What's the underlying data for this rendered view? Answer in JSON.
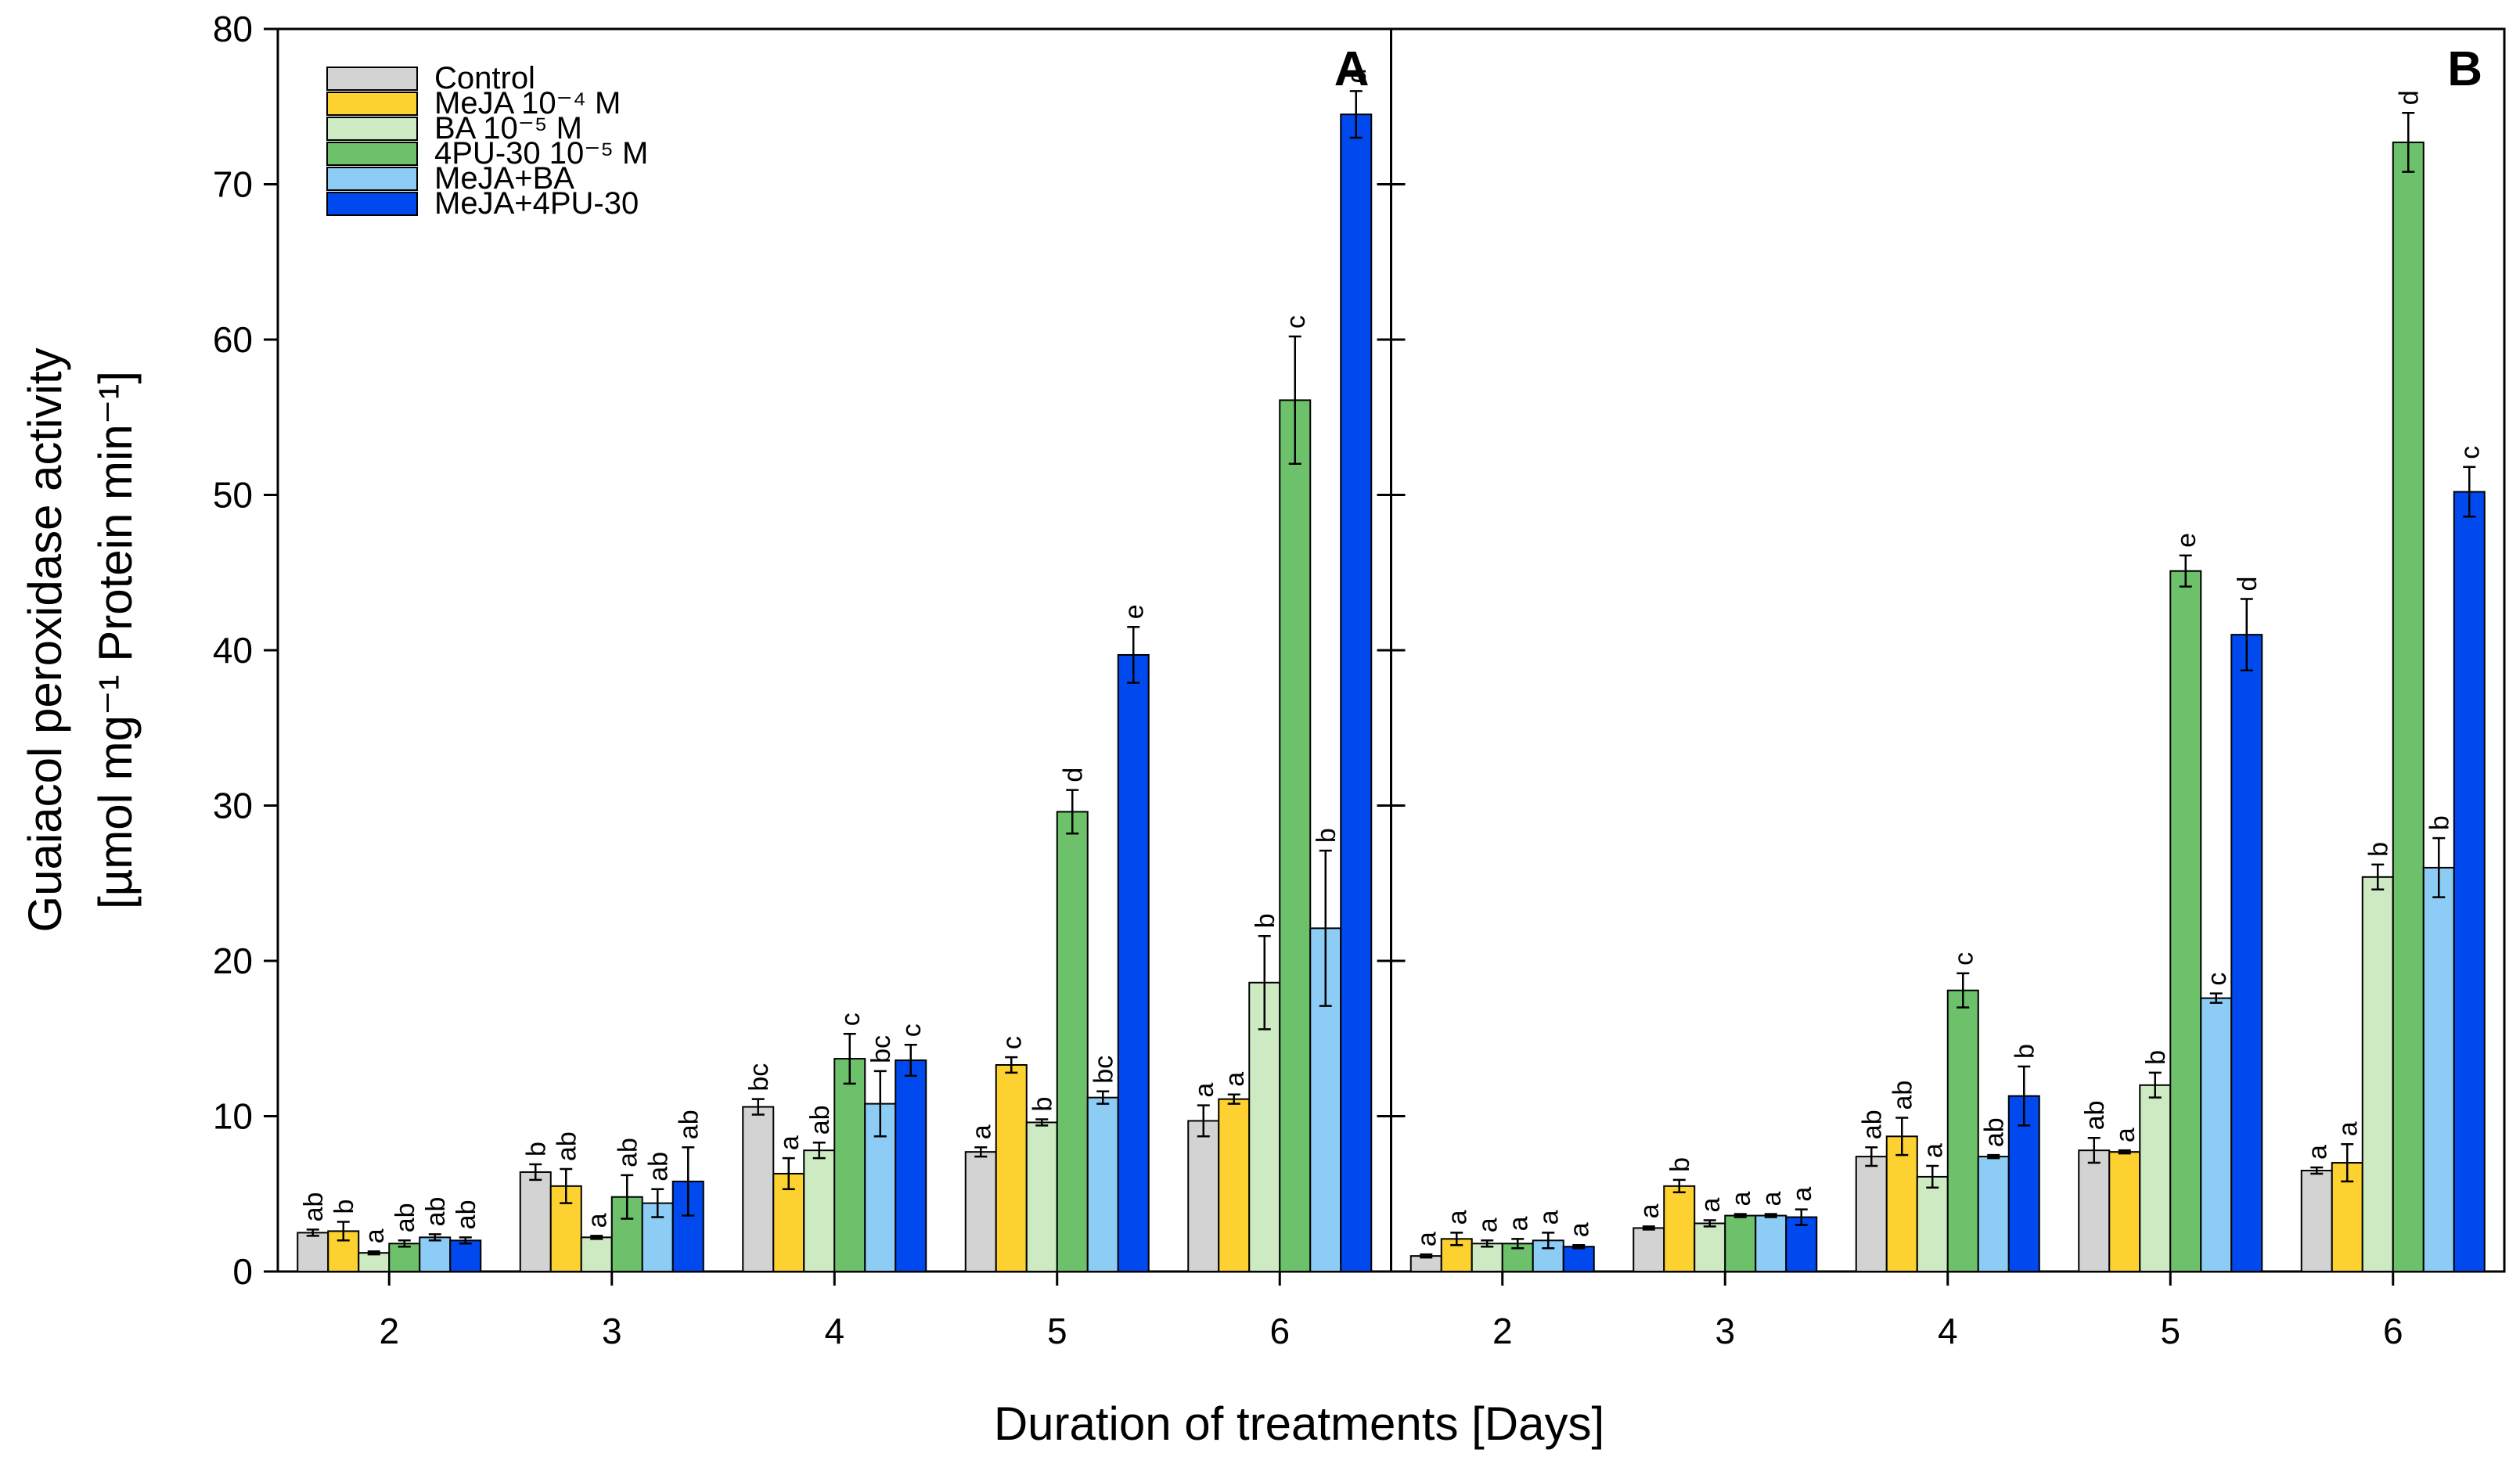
{
  "chart_data": {
    "type": "bar",
    "ylabel_line1": "Guaiacol peroxidase activity",
    "ylabel_line2": "[µmol mg⁻¹ Protein min⁻¹]",
    "xlabel": "Duration of treatments [Days]",
    "ylim": [
      0,
      80
    ],
    "yticks": [
      "0",
      "10",
      "20",
      "30",
      "40",
      "50",
      "60",
      "70",
      "80"
    ],
    "categories": [
      "2",
      "3",
      "4",
      "5",
      "6"
    ],
    "legend": {
      "placement": "top-left",
      "entries": [
        "Control",
        "MeJA 10⁻⁴ M",
        "BA 10⁻⁵ M",
        "4PU-30 10⁻⁵ M",
        "MeJA+BA",
        "MeJA+4PU-30"
      ]
    },
    "colors": [
      "#d3d3d3",
      "#fdd12f",
      "#cdeac3",
      "#6cc16a",
      "#8dccf5",
      "#0049ef"
    ],
    "panels": [
      {
        "label": "A",
        "series": [
          {
            "name": "Control",
            "values": [
              2.5,
              6.4,
              10.6,
              7.7,
              9.7
            ],
            "errors": [
              0.2,
              0.5,
              0.5,
              0.3,
              1.0
            ],
            "letters": [
              "ab",
              "b",
              "bc",
              "a",
              "a"
            ]
          },
          {
            "name": "MeJA",
            "values": [
              2.6,
              5.5,
              6.3,
              13.3,
              11.1
            ],
            "errors": [
              0.6,
              1.1,
              1.0,
              0.5,
              0.3
            ],
            "letters": [
              "b",
              "ab",
              "a",
              "c",
              "a"
            ]
          },
          {
            "name": "BA",
            "values": [
              1.2,
              2.2,
              7.8,
              9.6,
              18.6
            ],
            "errors": [
              0.1,
              0.1,
              0.5,
              0.2,
              3.0
            ],
            "letters": [
              "a",
              "a",
              "ab",
              "b",
              "b"
            ]
          },
          {
            "name": "4PU-30",
            "values": [
              1.8,
              4.8,
              13.7,
              29.6,
              56.1
            ],
            "errors": [
              0.2,
              1.4,
              1.6,
              1.4,
              4.1
            ],
            "letters": [
              "ab",
              "ab",
              "c",
              "d",
              "c"
            ]
          },
          {
            "name": "MeJA+BA",
            "values": [
              2.2,
              4.4,
              10.8,
              11.2,
              22.1
            ],
            "errors": [
              0.2,
              0.9,
              2.1,
              0.4,
              5.0
            ],
            "letters": [
              "ab",
              "ab",
              "bc",
              "bc",
              "b"
            ]
          },
          {
            "name": "MeJA+4PU-30",
            "values": [
              2.0,
              5.8,
              13.6,
              39.7,
              74.5
            ],
            "errors": [
              0.2,
              2.2,
              1.0,
              1.8,
              1.5
            ],
            "letters": [
              "ab",
              "ab",
              "c",
              "e",
              "d"
            ]
          }
        ]
      },
      {
        "label": "B",
        "series": [
          {
            "name": "Control",
            "values": [
              1.0,
              2.8,
              7.4,
              7.8,
              6.5
            ],
            "errors": [
              0.1,
              0.1,
              0.6,
              0.8,
              0.2
            ],
            "letters": [
              "a",
              "a",
              "ab",
              "ab",
              "a"
            ]
          },
          {
            "name": "MeJA",
            "values": [
              2.1,
              5.5,
              8.7,
              7.7,
              7.0
            ],
            "errors": [
              0.4,
              0.4,
              1.2,
              0.1,
              1.2
            ],
            "letters": [
              "a",
              "b",
              "ab",
              "a",
              "a"
            ]
          },
          {
            "name": "BA",
            "values": [
              1.8,
              3.1,
              6.1,
              12.0,
              25.4
            ],
            "errors": [
              0.2,
              0.2,
              0.7,
              0.8,
              0.8
            ],
            "letters": [
              "a",
              "a",
              "a",
              "b",
              "b"
            ]
          },
          {
            "name": "4PU-30",
            "values": [
              1.8,
              3.6,
              18.1,
              45.1,
              72.7
            ],
            "errors": [
              0.3,
              0.1,
              1.1,
              1.0,
              1.9
            ],
            "letters": [
              "a",
              "a",
              "c",
              "e",
              "d"
            ]
          },
          {
            "name": "MeJA+BA",
            "values": [
              2.0,
              3.6,
              7.4,
              17.6,
              26.0
            ],
            "errors": [
              0.5,
              0.1,
              0.1,
              0.3,
              1.9
            ],
            "letters": [
              "a",
              "a",
              "ab",
              "c",
              "b"
            ]
          },
          {
            "name": "MeJA+4PU-30",
            "values": [
              1.6,
              3.5,
              11.3,
              41.0,
              50.2
            ],
            "errors": [
              0.1,
              0.5,
              1.9,
              2.3,
              1.6
            ],
            "letters": [
              "a",
              "a",
              "b",
              "d",
              "c"
            ]
          }
        ]
      }
    ]
  }
}
